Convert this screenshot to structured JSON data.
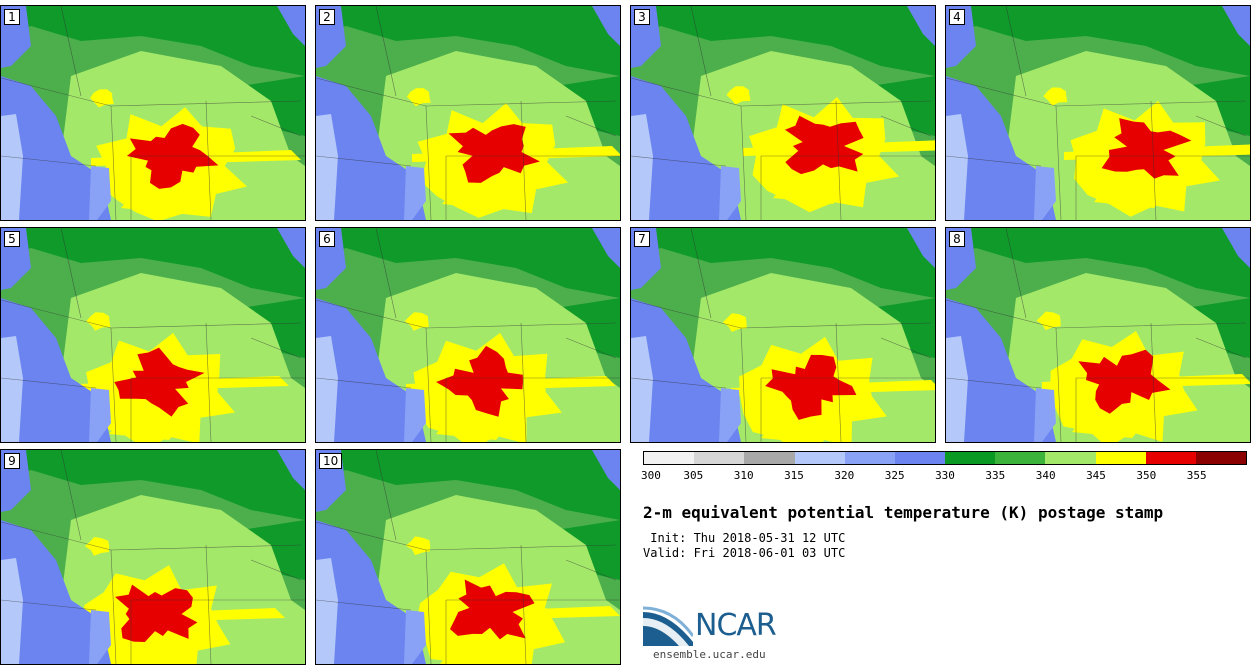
{
  "title": "2-m equivalent potential temperature (K) postage stamp",
  "init": " Init: Thu 2018-05-31 12 UTC",
  "valid": "Valid: Fri 2018-06-01 03 UTC",
  "panels": [
    {
      "label": "1",
      "shift": [
        0,
        0
      ]
    },
    {
      "label": "2",
      "shift": [
        6,
        -4
      ]
    },
    {
      "label": "3",
      "shift": [
        22,
        -10
      ]
    },
    {
      "label": "4",
      "shift": [
        28,
        -6
      ]
    },
    {
      "label": "5",
      "shift": [
        -12,
        4
      ]
    },
    {
      "label": "6",
      "shift": [
        0,
        4
      ]
    },
    {
      "label": "7",
      "shift": [
        10,
        8
      ]
    },
    {
      "label": "8",
      "shift": [
        6,
        2
      ]
    },
    {
      "label": "9",
      "shift": [
        -16,
        14
      ]
    },
    {
      "label": "10",
      "shift": [
        4,
        12
      ]
    }
  ],
  "colorbar": {
    "ticks": [
      "300",
      "305",
      "310",
      "315",
      "320",
      "325",
      "330",
      "335",
      "340",
      "345",
      "350",
      "355"
    ],
    "colors": [
      "#f2f2f2",
      "#d6d6d6",
      "#a8a8a8",
      "#b4c8fa",
      "#8aa2f6",
      "#6b84f0",
      "#0a9a24",
      "#3cb43c",
      "#a4e86a",
      "#ffff00",
      "#e60000",
      "#8b0000"
    ]
  },
  "logo": {
    "text": "NCAR",
    "url": "ensemble.ucar.edu"
  }
}
